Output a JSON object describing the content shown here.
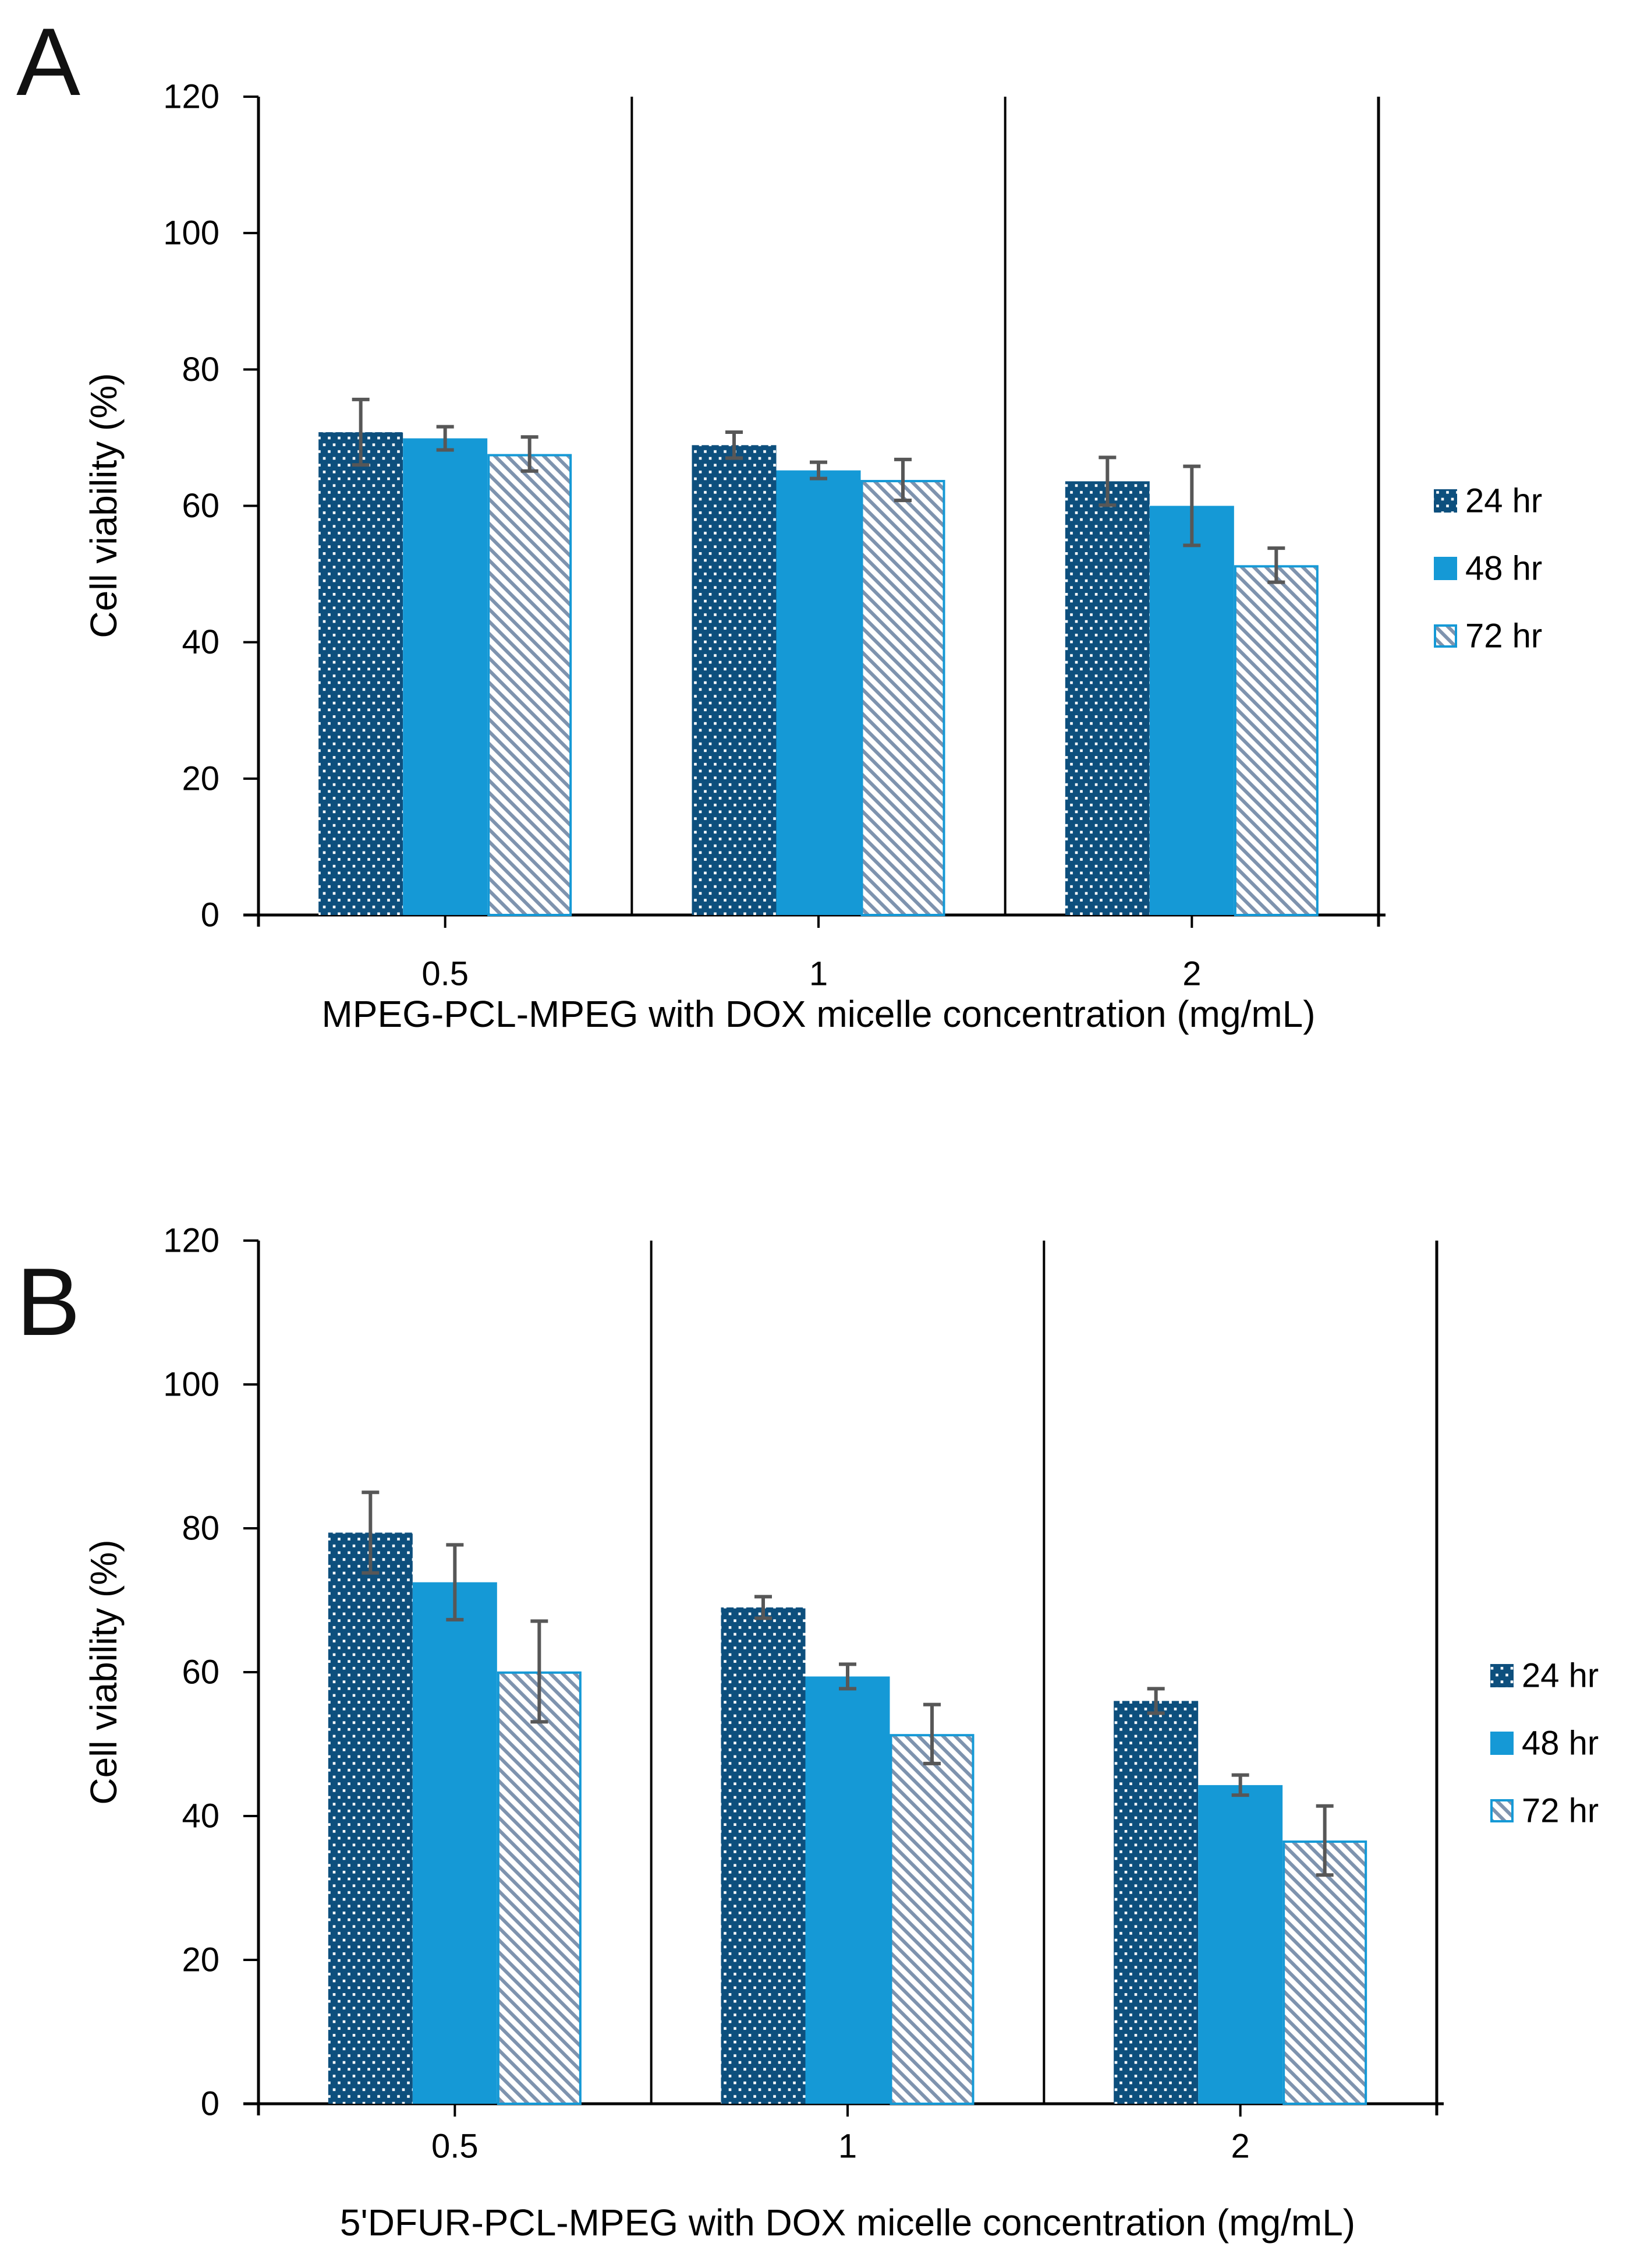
{
  "panel_labels": [
    "A",
    "B"
  ],
  "colors": {
    "bar_24hr_fill": "#0D4F7D",
    "bar_dot": "#FFFFFF",
    "bar_48hr_fill": "#1599D6",
    "hatch_stripe": "#7E93AE",
    "hatch_background": "#FFFFFF",
    "hatch_border": "#1599D6",
    "error_bar": "#575757",
    "axis_line": "#000000",
    "text": "#000000"
  },
  "chart_data": [
    {
      "type": "bar",
      "title": "",
      "xlabel": "MPEG-PCL-MPEG with DOX micelle concentration (mg/mL)",
      "ylabel": "Cell viability (%)",
      "categories": [
        "0.5",
        "1",
        "2"
      ],
      "y_ticks": [
        0,
        20,
        40,
        60,
        80,
        100,
        120
      ],
      "ylim": [
        0,
        120
      ],
      "grid": false,
      "legend_position": "right",
      "series": [
        {
          "name": "24 hr",
          "pattern": "dots",
          "values": [
            70.8,
            68.9,
            63.6
          ],
          "errors": [
            4.8,
            1.9,
            3.5
          ]
        },
        {
          "name": "48 hr",
          "pattern": "solid",
          "values": [
            69.9,
            65.2,
            60.0
          ],
          "errors": [
            1.7,
            1.2,
            5.8
          ]
        },
        {
          "name": "72 hr",
          "pattern": "hatch",
          "values": [
            67.6,
            63.8,
            51.3
          ],
          "errors": [
            2.5,
            3.0,
            2.5
          ]
        }
      ]
    },
    {
      "type": "bar",
      "title": "",
      "xlabel": "5'DFUR-PCL-MPEG with DOX micelle concentration (mg/mL)",
      "ylabel": "Cell viability (%)",
      "categories": [
        "0.5",
        "1",
        "2"
      ],
      "y_ticks": [
        0,
        20,
        40,
        60,
        80,
        100,
        120
      ],
      "ylim": [
        0,
        120
      ],
      "grid": false,
      "legend_position": "right",
      "series": [
        {
          "name": "24 hr",
          "pattern": "dots",
          "values": [
            79.4,
            69.0,
            56.0
          ],
          "errors": [
            5.6,
            1.5,
            1.7
          ]
        },
        {
          "name": "48 hr",
          "pattern": "solid",
          "values": [
            72.5,
            59.4,
            44.3
          ],
          "errors": [
            5.2,
            1.7,
            1.4
          ]
        },
        {
          "name": "72 hr",
          "pattern": "hatch",
          "values": [
            60.1,
            51.4,
            36.6
          ],
          "errors": [
            7.0,
            4.1,
            4.8
          ]
        }
      ]
    }
  ]
}
